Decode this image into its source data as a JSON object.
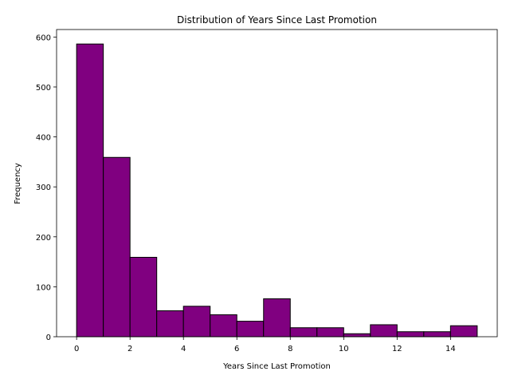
{
  "chart_data": {
    "type": "bar",
    "title": "Distribution of Years Since Last Promotion",
    "xlabel": "Years Since Last Promotion",
    "ylabel": "Frequency",
    "bins": [
      {
        "start": 0,
        "end": 1,
        "count": 586
      },
      {
        "start": 1,
        "end": 2,
        "count": 359
      },
      {
        "start": 2,
        "end": 3,
        "count": 159
      },
      {
        "start": 3,
        "end": 4,
        "count": 52
      },
      {
        "start": 4,
        "end": 5,
        "count": 61
      },
      {
        "start": 5,
        "end": 6,
        "count": 44
      },
      {
        "start": 6,
        "end": 7,
        "count": 31
      },
      {
        "start": 7,
        "end": 8,
        "count": 76
      },
      {
        "start": 8,
        "end": 9,
        "count": 18
      },
      {
        "start": 9,
        "end": 10,
        "count": 18
      },
      {
        "start": 10,
        "end": 11,
        "count": 6
      },
      {
        "start": 11,
        "end": 12,
        "count": 24
      },
      {
        "start": 12,
        "end": 13,
        "count": 10
      },
      {
        "start": 13,
        "end": 14,
        "count": 10
      },
      {
        "start": 14,
        "end": 15,
        "count": 22
      }
    ],
    "xlim": [
      -0.75,
      15.75
    ],
    "ylim": [
      0,
      615
    ],
    "xticks": [
      0,
      2,
      4,
      6,
      8,
      10,
      12,
      14
    ],
    "yticks": [
      0,
      100,
      200,
      300,
      400,
      500,
      600
    ],
    "bar_color": "#800080",
    "edge_color": "#000000",
    "grid": false,
    "legend": "none"
  }
}
